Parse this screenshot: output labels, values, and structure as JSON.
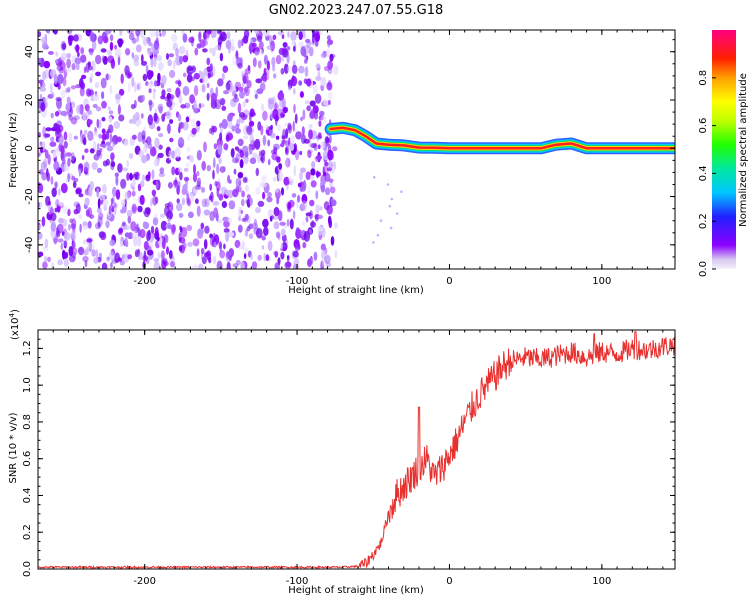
{
  "title": "GN02.2023.247.07.55.G18",
  "chart_data": [
    {
      "type": "heatmap",
      "xlabel": "Height of straight line (km)",
      "ylabel": "Frequency (Hz)",
      "xlim": [
        -270,
        148
      ],
      "ylim": [
        -50,
        49
      ],
      "xticks": [
        -200,
        -100,
        0,
        100
      ],
      "yticks": [
        -40,
        -20,
        0,
        20,
        40
      ],
      "colorbar": {
        "label": "Normalized spectral amplitude",
        "range": [
          0,
          1
        ],
        "ticks": [
          "0.0",
          "0.2",
          "0.4",
          "0.6",
          "0.8"
        ],
        "colormap": [
          "#f0f0f5",
          "#8b00ff",
          "#3030ff",
          "#00c8ff",
          "#00ff80",
          "#80ff00",
          "#ffff00",
          "#ffa000",
          "#ff0000",
          "#ff0080"
        ]
      },
      "noise_region": {
        "x": [
          -270,
          -77
        ],
        "dominant_color": "#8a2be2"
      },
      "ridge": {
        "x": [
          -78,
          -70,
          -62,
          -55,
          -48,
          -40,
          -30,
          -20,
          -10,
          0,
          20,
          40,
          60,
          70,
          80,
          90,
          100,
          120,
          148
        ],
        "y": [
          8,
          8.5,
          7.5,
          5,
          2,
          1.5,
          1.2,
          0.3,
          0.2,
          0,
          0,
          0,
          0,
          1.5,
          2,
          0,
          0,
          0,
          0
        ]
      }
    },
    {
      "type": "line",
      "xlabel": "Height of straight line (km)",
      "ylabel": "SNR (10 * v/v)",
      "y_multiplier": "(x10",
      "y_multiplier_exp": "4",
      "y_multiplier_close": ")",
      "xlim": [
        -270,
        148
      ],
      "ylim": [
        0,
        1.3
      ],
      "xticks": [
        -200,
        -100,
        0,
        100
      ],
      "yticks": [
        "0.0",
        "0.2",
        "0.4",
        "0.6",
        "0.8",
        "1.0",
        "1.2"
      ],
      "color": "#e8312f",
      "x": [
        -270,
        -200,
        -100,
        -70,
        -60,
        -55,
        -50,
        -45,
        -40,
        -35,
        -30,
        -25,
        -20,
        -15,
        -10,
        -5,
        0,
        5,
        10,
        15,
        20,
        25,
        30,
        35,
        40,
        50,
        60,
        70,
        80,
        90,
        100,
        110,
        120,
        130,
        140,
        148
      ],
      "y": [
        0.01,
        0.01,
        0.01,
        0.01,
        0.015,
        0.03,
        0.08,
        0.14,
        0.3,
        0.4,
        0.45,
        0.5,
        0.55,
        0.6,
        0.5,
        0.55,
        0.62,
        0.7,
        0.8,
        0.88,
        0.95,
        1.0,
        1.05,
        1.1,
        1.13,
        1.15,
        1.14,
        1.16,
        1.18,
        1.15,
        1.18,
        1.17,
        1.2,
        1.19,
        1.21,
        1.22
      ],
      "spikes": [
        {
          "x": -20,
          "y": 0.88
        },
        {
          "x": 95,
          "y": 1.28
        },
        {
          "x": 122,
          "y": 1.29
        }
      ]
    }
  ]
}
